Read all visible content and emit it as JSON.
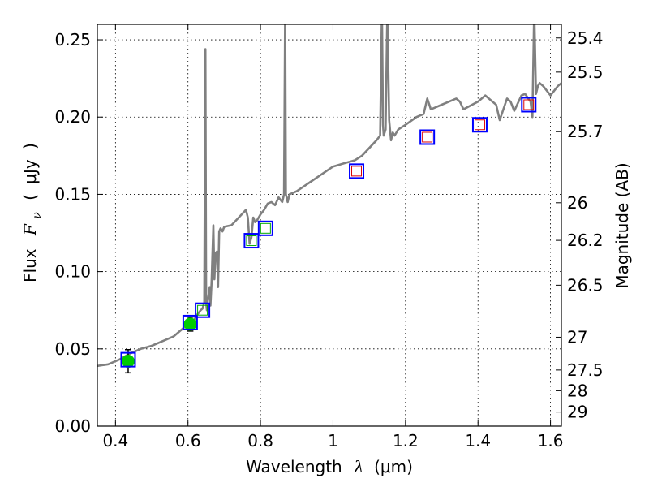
{
  "chart_data": {
    "type": "line",
    "xlabel": "Wavelength  λ (μm)",
    "ylabel": "Flux  Fν  ( μJy )",
    "ylabel_parts": {
      "prefix": "Flux",
      "symbol": "F",
      "subscript": "ν",
      "unit_open": "(",
      "unit": "μJy",
      "unit_close": ")"
    },
    "xlabel_parts": {
      "prefix": "Wavelength",
      "symbol": "λ",
      "unit": "(μm)"
    },
    "y2label": "Magnitude (AB)",
    "xlim": [
      0.35,
      1.63
    ],
    "ylim": [
      0.0,
      0.26
    ],
    "grid": true,
    "x_ticks": [
      {
        "value": 0.4,
        "label": "0.4"
      },
      {
        "value": 0.6,
        "label": "0.6"
      },
      {
        "value": 0.8,
        "label": "0.8"
      },
      {
        "value": 1.0,
        "label": "1"
      },
      {
        "value": 1.2,
        "label": "1.2"
      },
      {
        "value": 1.4,
        "label": "1.4"
      },
      {
        "value": 1.6,
        "label": "1.6"
      }
    ],
    "y_ticks": [
      {
        "value": 0.0,
        "label": "0.00"
      },
      {
        "value": 0.05,
        "label": "0.05"
      },
      {
        "value": 0.1,
        "label": "0.10"
      },
      {
        "value": 0.15,
        "label": "0.15"
      },
      {
        "value": 0.2,
        "label": "0.20"
      },
      {
        "value": 0.25,
        "label": "0.25"
      }
    ],
    "magnitude_ticks": [
      "25.4",
      "25.5",
      "25.7",
      "26",
      "26.2",
      "26.5",
      "27",
      "27.5",
      "28",
      "29"
    ],
    "series": [
      {
        "name": "model spectrum",
        "kind": "line",
        "color": "#808080",
        "x": [
          0.35,
          0.38,
          0.41,
          0.44,
          0.47,
          0.5,
          0.53,
          0.56,
          0.58,
          0.6,
          0.615,
          0.625,
          0.635,
          0.64,
          0.645,
          0.648,
          0.65,
          0.652,
          0.655,
          0.66,
          0.662,
          0.665,
          0.67,
          0.673,
          0.676,
          0.68,
          0.683,
          0.686,
          0.69,
          0.695,
          0.7,
          0.72,
          0.74,
          0.76,
          0.765,
          0.77,
          0.775,
          0.78,
          0.785,
          0.79,
          0.8,
          0.81,
          0.82,
          0.83,
          0.84,
          0.85,
          0.86,
          0.865,
          0.868,
          0.87,
          0.872,
          0.875,
          0.88,
          0.9,
          0.95,
          1.0,
          1.03,
          1.06,
          1.08,
          1.1,
          1.12,
          1.13,
          1.135,
          1.138,
          1.14,
          1.145,
          1.15,
          1.155,
          1.16,
          1.165,
          1.17,
          1.18,
          1.2,
          1.23,
          1.25,
          1.26,
          1.27,
          1.28,
          1.3,
          1.32,
          1.34,
          1.35,
          1.36,
          1.4,
          1.42,
          1.44,
          1.45,
          1.46,
          1.48,
          1.49,
          1.5,
          1.52,
          1.53,
          1.545,
          1.55,
          1.555,
          1.56,
          1.565,
          1.57,
          1.58,
          1.6,
          1.62,
          1.63
        ],
        "y": [
          0.039,
          0.04,
          0.043,
          0.047,
          0.05,
          0.052,
          0.055,
          0.058,
          0.062,
          0.066,
          0.068,
          0.072,
          0.075,
          0.076,
          0.08,
          0.244,
          0.08,
          0.075,
          0.082,
          0.09,
          0.078,
          0.093,
          0.13,
          0.095,
          0.112,
          0.113,
          0.09,
          0.126,
          0.128,
          0.126,
          0.129,
          0.13,
          0.135,
          0.14,
          0.135,
          0.118,
          0.122,
          0.135,
          0.132,
          0.133,
          0.137,
          0.14,
          0.144,
          0.145,
          0.143,
          0.148,
          0.145,
          0.15,
          0.27,
          0.15,
          0.148,
          0.145,
          0.15,
          0.152,
          0.16,
          0.168,
          0.17,
          0.172,
          0.175,
          0.18,
          0.185,
          0.188,
          0.27,
          0.195,
          0.188,
          0.192,
          0.27,
          0.198,
          0.185,
          0.19,
          0.188,
          0.192,
          0.195,
          0.2,
          0.202,
          0.212,
          0.205,
          0.206,
          0.208,
          0.21,
          0.212,
          0.21,
          0.205,
          0.21,
          0.214,
          0.21,
          0.208,
          0.198,
          0.212,
          0.21,
          0.204,
          0.214,
          0.215,
          0.21,
          0.2,
          0.27,
          0.215,
          0.22,
          0.222,
          0.22,
          0.214,
          0.22,
          0.222
        ]
      },
      {
        "name": "measured photometry",
        "kind": "point",
        "color": "#00cc00",
        "x": [
          0.435,
          0.606
        ],
        "y": [
          0.042,
          0.066
        ],
        "yerr": [
          0.0075,
          0.0045
        ]
      },
      {
        "name": "model photometry (blue boxes)",
        "kind": "square",
        "color": "#0000ff",
        "x": [
          0.435,
          0.606,
          0.64,
          0.775,
          0.814,
          1.065,
          1.26,
          1.405,
          1.54
        ],
        "y": [
          0.043,
          0.067,
          0.075,
          0.12,
          0.128,
          0.165,
          0.187,
          0.195,
          0.208
        ]
      },
      {
        "name": "inner green squares",
        "kind": "inner-square",
        "color": "#00aa00",
        "x": [
          0.64,
          0.775,
          0.814
        ],
        "y": [
          0.075,
          0.12,
          0.128
        ]
      },
      {
        "name": "inner red squares",
        "kind": "inner-square",
        "color": "#dd0000",
        "x": [
          1.065,
          1.26,
          1.405,
          1.54
        ],
        "y": [
          0.165,
          0.187,
          0.195,
          0.208
        ]
      }
    ]
  }
}
